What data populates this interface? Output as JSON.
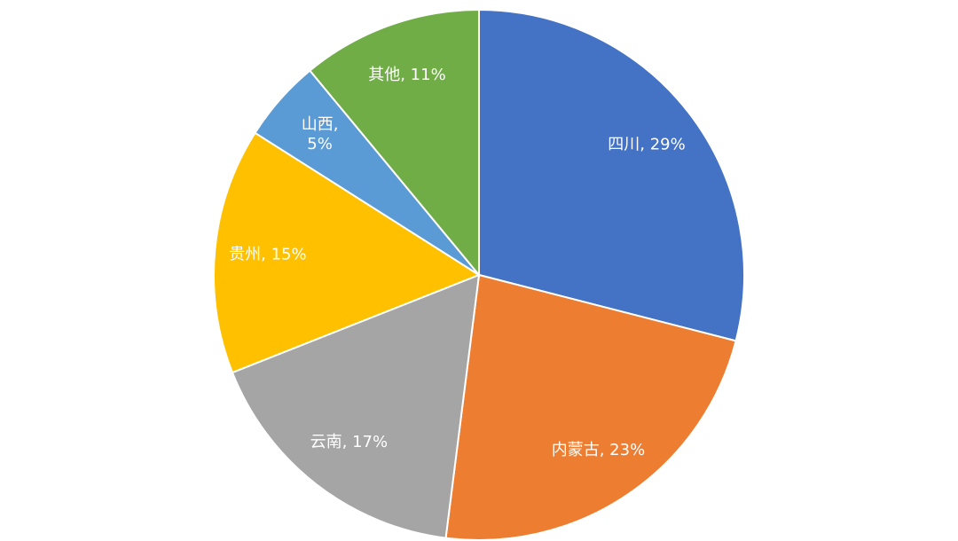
{
  "chart_data": {
    "type": "pie",
    "categories": [
      "四川",
      "内蒙古",
      "云南",
      "贵州",
      "山西",
      "其他"
    ],
    "values": [
      29,
      23,
      17,
      15,
      5,
      11
    ],
    "value_labels": [
      "四川, 29%",
      "内蒙古, 23%",
      "云南, 17%",
      "贵州, 15%",
      "山西, 5%",
      "其他, 11%"
    ],
    "colors": [
      "#4472c4",
      "#ed7d31",
      "#a5a5a5",
      "#ffc000",
      "#5b9bd5",
      "#70ad47"
    ]
  }
}
